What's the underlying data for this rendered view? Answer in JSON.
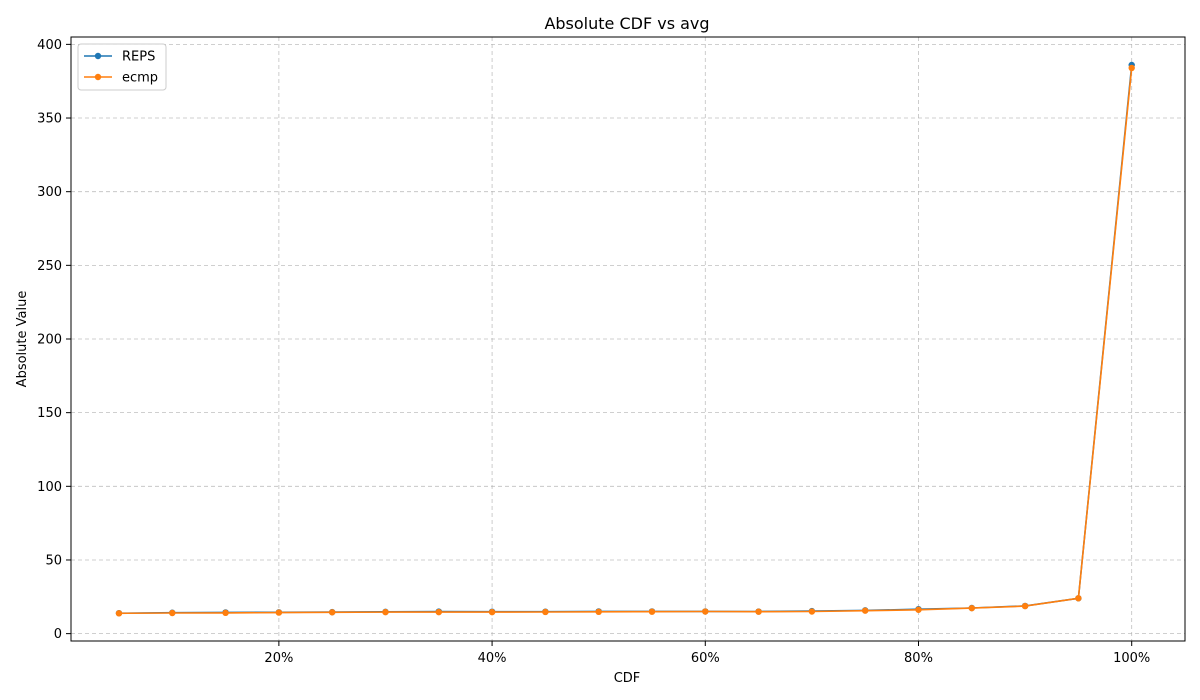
{
  "chart_data": {
    "type": "line",
    "title": "Absolute CDF vs avg",
    "xlabel": "CDF",
    "ylabel": "Absolute Value",
    "xlim": [
      0.5,
      105
    ],
    "ylim": [
      -5,
      405
    ],
    "x_ticks": [
      20,
      40,
      60,
      80,
      100
    ],
    "x_tick_labels": [
      "20%",
      "40%",
      "60%",
      "80%",
      "100%"
    ],
    "y_ticks": [
      0,
      50,
      100,
      150,
      200,
      250,
      300,
      350,
      400
    ],
    "y_tick_labels": [
      "0",
      "50",
      "100",
      "150",
      "200",
      "250",
      "300",
      "350",
      "400"
    ],
    "grid": true,
    "legend_position": "top-left",
    "x": [
      5,
      10,
      15,
      20,
      25,
      30,
      35,
      40,
      45,
      50,
      55,
      60,
      65,
      70,
      75,
      80,
      85,
      90,
      95,
      100
    ],
    "series": [
      {
        "name": "REPS",
        "color": "#1f77b4",
        "values": [
          13.9,
          14.2,
          14.4,
          14.5,
          14.6,
          14.8,
          15.0,
          14.9,
          14.9,
          15.1,
          15.1,
          15.1,
          15.0,
          15.3,
          15.8,
          16.6,
          17.4,
          18.8,
          24.0,
          386.0
        ]
      },
      {
        "name": "ecmp",
        "color": "#ff7f0e",
        "values": [
          13.8,
          14.0,
          14.1,
          14.3,
          14.5,
          14.6,
          14.6,
          14.6,
          14.7,
          14.8,
          14.9,
          15.0,
          14.9,
          15.0,
          15.6,
          16.2,
          17.3,
          18.7,
          24.0,
          384.0
        ]
      }
    ]
  }
}
